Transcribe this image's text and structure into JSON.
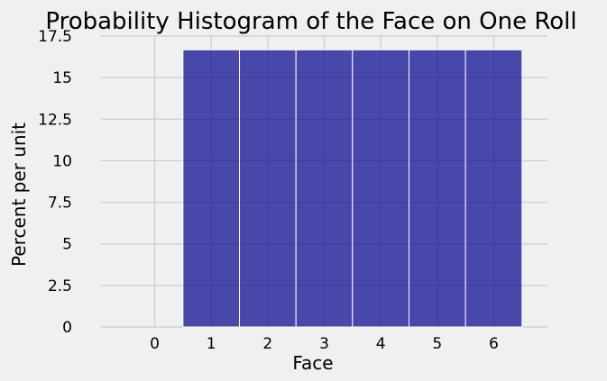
{
  "chart_data": {
    "type": "bar",
    "title": "Probability Histogram of the Face on One Roll",
    "xlabel": "Face",
    "ylabel": "Percent per unit",
    "categories": [
      "1",
      "2",
      "3",
      "4",
      "5",
      "6"
    ],
    "x": [
      1,
      2,
      3,
      4,
      5,
      6
    ],
    "values": [
      16.67,
      16.67,
      16.67,
      16.67,
      16.67,
      16.67
    ],
    "bin_width": 1,
    "xlim": [
      -0.95,
      6.95
    ],
    "ylim": [
      0,
      17.5
    ],
    "xticks": [
      0,
      1,
      2,
      3,
      4,
      5,
      6
    ],
    "xtick_labels": [
      "0",
      "1",
      "2",
      "3",
      "4",
      "5",
      "6"
    ],
    "yticks": [
      0,
      2.5,
      5,
      7.5,
      10,
      12.5,
      15,
      17.5
    ],
    "ytick_labels": [
      "0",
      "2.5",
      "5",
      "7.5",
      "10",
      "12.5",
      "15",
      "17.5"
    ],
    "grid": true,
    "colors": {
      "bar_fill": "#00008b",
      "bar_edge": "#ffffff",
      "background": "#f0f0f0",
      "grid": "#cbcbcb"
    }
  }
}
